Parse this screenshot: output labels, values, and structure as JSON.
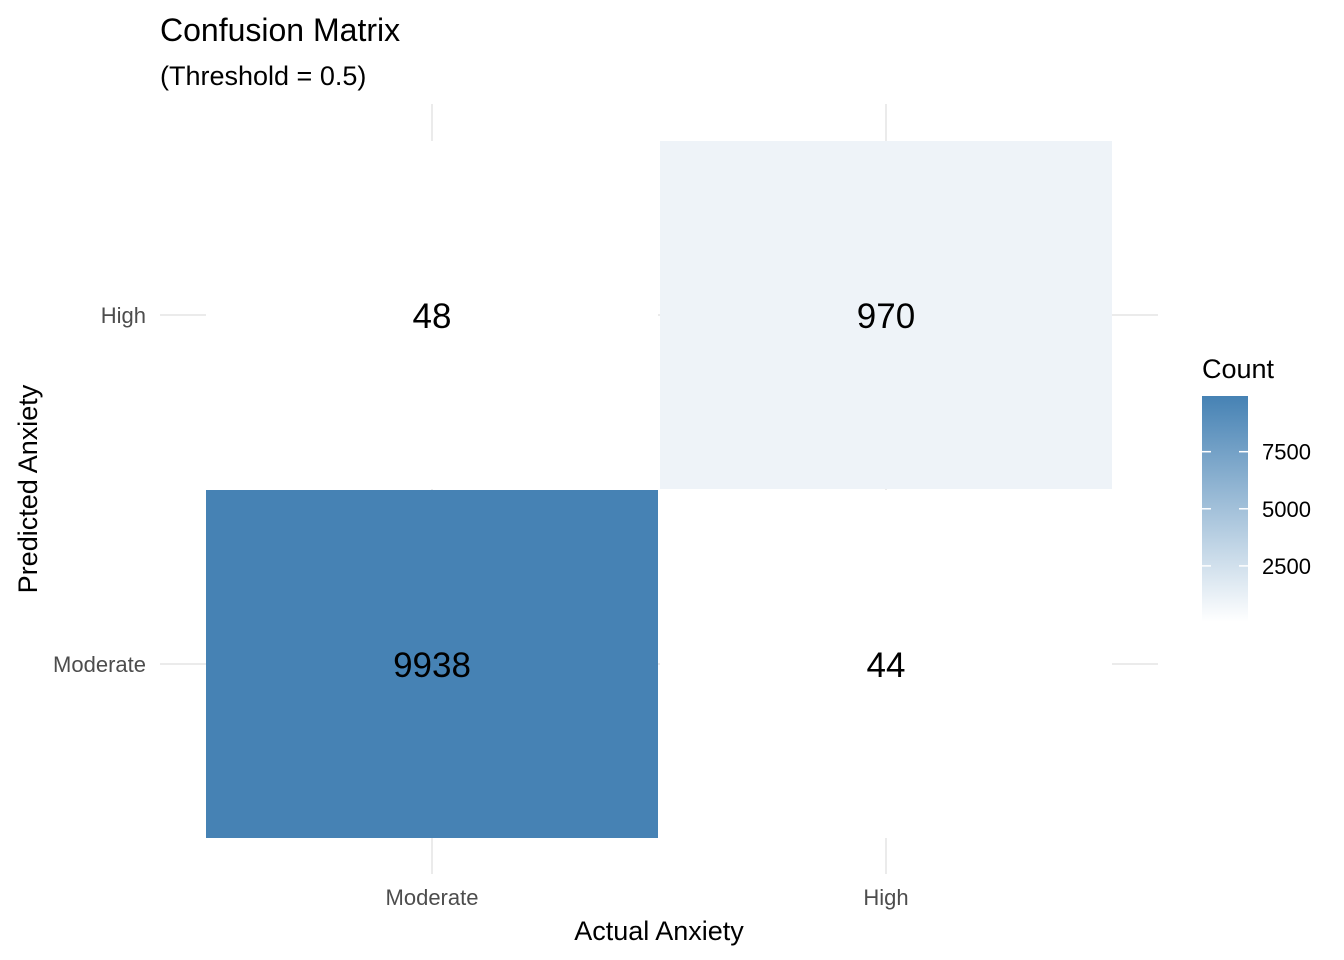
{
  "chart_data": {
    "type": "heatmap",
    "title": "Confusion Matrix",
    "subtitle": "(Threshold = 0.5)",
    "xlabel": "Actual Anxiety",
    "ylabel": "Predicted Anxiety",
    "x_categories": [
      "Moderate",
      "High"
    ],
    "y_categories": [
      "Moderate",
      "High"
    ],
    "cells": [
      {
        "actual": "Moderate",
        "predicted": "High",
        "value": 48
      },
      {
        "actual": "High",
        "predicted": "High",
        "value": 970
      },
      {
        "actual": "Moderate",
        "predicted": "Moderate",
        "value": 9938
      },
      {
        "actual": "High",
        "predicted": "Moderate",
        "value": 44
      }
    ],
    "legend": {
      "title": "Count",
      "ticks": [
        2500,
        5000,
        7500
      ],
      "range": [
        44,
        9938
      ],
      "placement": "right",
      "low_color": "#ffffff",
      "high_color": "#4682b4"
    },
    "grid": true
  }
}
